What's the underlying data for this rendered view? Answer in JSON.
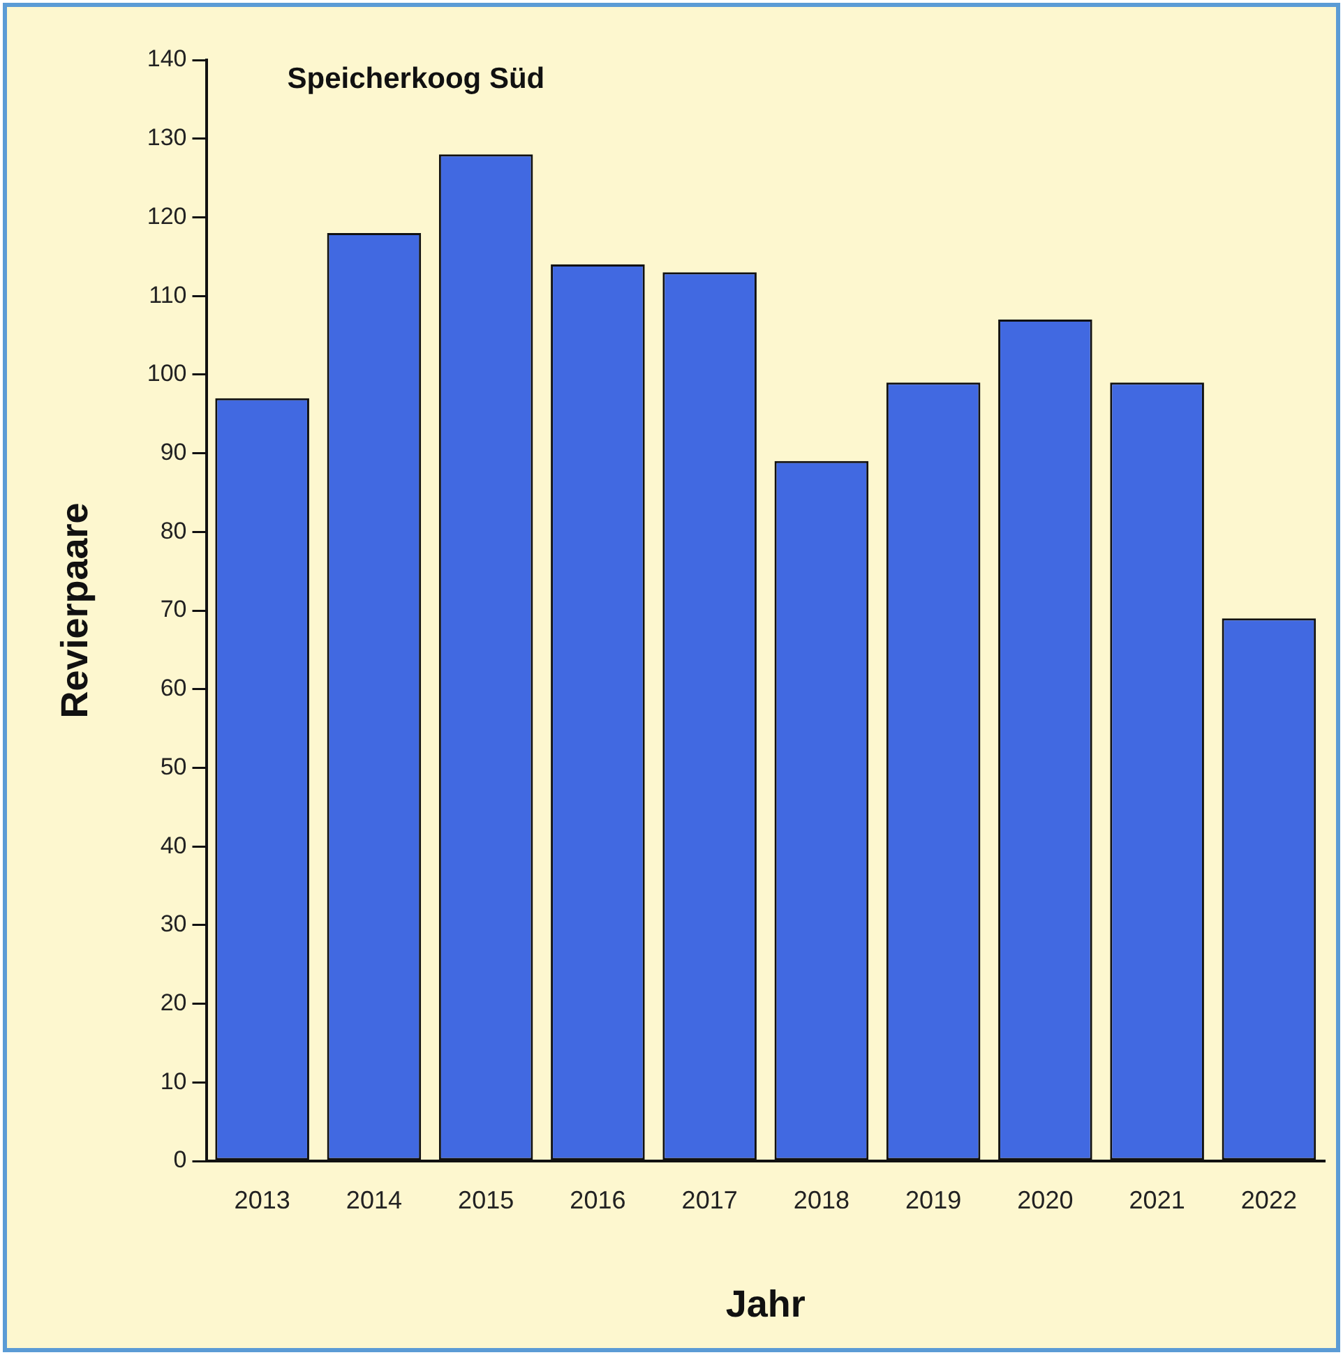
{
  "chart_data": {
    "type": "bar",
    "title": "Speicherkoog Süd",
    "xlabel": "Jahr",
    "ylabel": "Revierpaare",
    "categories": [
      "2013",
      "2014",
      "2015",
      "2016",
      "2017",
      "2018",
      "2019",
      "2020",
      "2021",
      "2022"
    ],
    "values": [
      97,
      118,
      128,
      114,
      113,
      89,
      99,
      107,
      99,
      69
    ],
    "color": "#4169e1",
    "ylim": [
      0,
      140
    ],
    "yticks": [
      0,
      10,
      20,
      30,
      40,
      50,
      60,
      70,
      80,
      90,
      100,
      110,
      120,
      130,
      140
    ],
    "grid": false
  }
}
